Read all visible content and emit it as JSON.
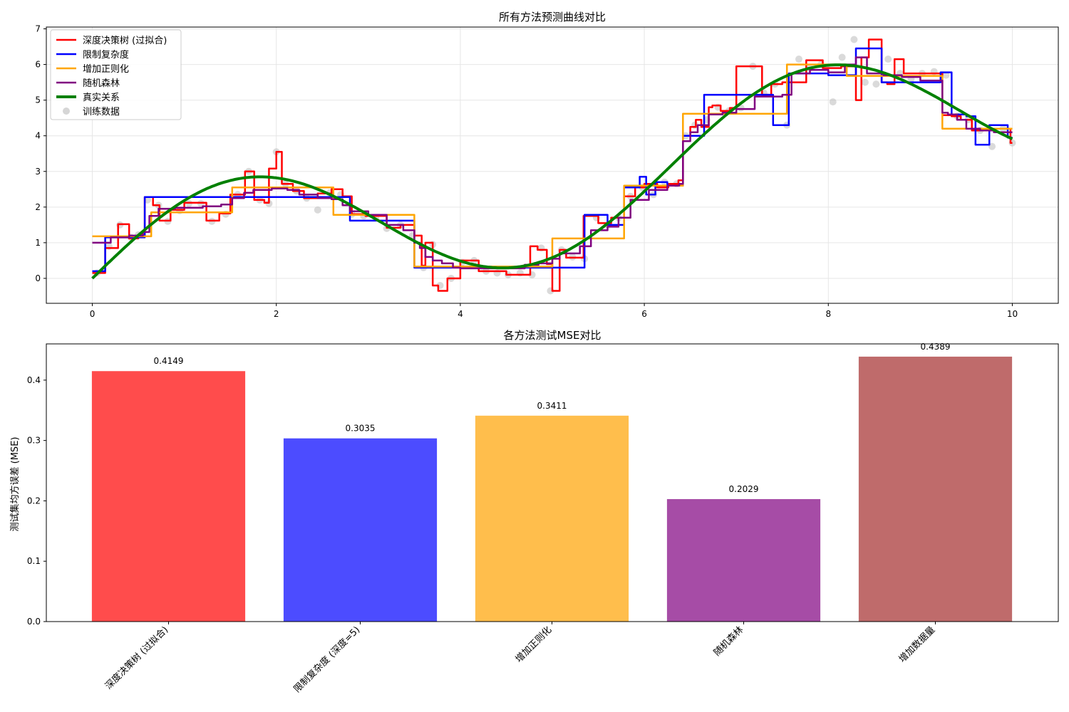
{
  "chart_data": [
    {
      "type": "line",
      "title": "所有方法预测曲线对比",
      "xlabel": "",
      "ylabel": "",
      "xlim": [
        -0.5,
        10.5
      ],
      "ylim": [
        -0.7,
        7.05
      ],
      "xticks": [
        0,
        2,
        4,
        6,
        8,
        10
      ],
      "yticks": [
        0,
        1,
        2,
        3,
        4,
        5,
        6,
        7
      ],
      "grid": true,
      "legend_position": "top-left",
      "series": [
        {
          "name": "深度决策树 (过拟合)",
          "color": "#ff0000",
          "width": 2.5,
          "style": "step",
          "x": [
            0,
            0.14,
            0.28,
            0.4,
            0.5,
            0.57,
            0.66,
            0.73,
            0.85,
            1.0,
            1.24,
            1.38,
            1.5,
            1.66,
            1.76,
            1.87,
            1.92,
            2.0,
            2.06,
            2.18,
            2.3,
            2.45,
            2.6,
            2.72,
            2.82,
            2.97,
            3.2,
            3.35,
            3.5,
            3.58,
            3.62,
            3.7,
            3.76,
            3.86,
            4.0,
            4.2,
            4.36,
            4.5,
            4.6,
            4.76,
            4.84,
            4.94,
            5.0,
            5.08,
            5.15,
            5.34,
            5.5,
            5.64,
            5.78,
            5.9,
            6.0,
            6.14,
            6.26,
            6.37,
            6.42,
            6.5,
            6.56,
            6.62,
            6.7,
            6.74,
            6.83,
            6.93,
            7.0,
            7.28,
            7.38,
            7.5,
            7.76,
            7.94,
            8.14,
            8.3,
            8.36,
            8.44,
            8.58,
            8.64,
            8.72,
            8.82,
            8.98,
            9.24,
            9.34,
            9.44,
            9.56,
            9.74,
            9.98,
            10.0
          ],
          "y": [
            0.15,
            0.85,
            1.52,
            1.12,
            1.22,
            2.28,
            2.05,
            1.62,
            1.92,
            2.12,
            1.62,
            1.82,
            2.35,
            3.0,
            2.2,
            2.12,
            3.08,
            3.55,
            2.65,
            2.45,
            2.25,
            2.38,
            2.5,
            2.3,
            1.8,
            1.75,
            1.42,
            1.5,
            1.2,
            0.35,
            1.0,
            -0.2,
            -0.35,
            0.0,
            0.5,
            0.2,
            0.2,
            0.1,
            0.1,
            0.9,
            0.8,
            0.4,
            -0.35,
            0.8,
            0.58,
            1.75,
            1.55,
            1.7,
            2.3,
            2.55,
            2.65,
            2.55,
            2.65,
            2.75,
            4.0,
            4.25,
            4.45,
            4.25,
            4.8,
            4.85,
            4.7,
            4.78,
            5.95,
            5.15,
            5.45,
            5.5,
            6.12,
            5.9,
            5.95,
            5.0,
            6.2,
            6.7,
            5.5,
            5.45,
            6.15,
            5.75,
            5.75,
            4.58,
            4.55,
            4.45,
            4.15,
            4.2,
            3.8,
            3.8
          ]
        },
        {
          "name": "限制复杂度",
          "color": "#0000ff",
          "width": 2.5,
          "style": "step",
          "x": [
            0,
            0.14,
            0.57,
            2.8,
            3.5,
            3.7,
            5.35,
            5.6,
            5.78,
            5.95,
            6.02,
            6.12,
            6.25,
            6.42,
            6.65,
            7.0,
            7.4,
            7.57,
            8.0,
            8.3,
            8.58,
            9.22,
            9.34,
            9.5,
            9.6,
            9.75,
            9.95,
            10.0
          ],
          "y": [
            0.2,
            1.15,
            2.28,
            1.62,
            0.3,
            0.3,
            1.78,
            1.5,
            2.55,
            2.85,
            2.35,
            2.7,
            2.6,
            4.0,
            5.15,
            5.15,
            4.3,
            5.75,
            5.7,
            6.45,
            5.5,
            5.78,
            4.6,
            4.55,
            3.75,
            4.3,
            3.95,
            3.95
          ]
        },
        {
          "name": "增加正则化",
          "color": "#ffa500",
          "width": 2.5,
          "style": "step",
          "x": [
            0,
            0.64,
            1.52,
            2.62,
            3.5,
            5.0,
            5.78,
            6.42,
            7.55,
            8.2,
            9.24,
            10.0
          ],
          "y": [
            1.18,
            1.85,
            2.55,
            1.78,
            0.33,
            1.12,
            2.6,
            4.62,
            6.0,
            5.68,
            4.2,
            4.2
          ]
        },
        {
          "name": "随机森林",
          "color": "#800080",
          "width": 2.5,
          "style": "step",
          "x": [
            0,
            0.2,
            0.4,
            0.55,
            0.62,
            0.72,
            0.9,
            1.2,
            1.4,
            1.52,
            1.65,
            1.75,
            1.95,
            2.12,
            2.25,
            2.45,
            2.6,
            2.72,
            2.8,
            3.0,
            3.2,
            3.38,
            3.5,
            3.56,
            3.62,
            3.7,
            3.8,
            3.92,
            4.0,
            4.5,
            4.7,
            4.85,
            5.0,
            5.08,
            5.3,
            5.42,
            5.6,
            5.72,
            5.85,
            6.05,
            6.25,
            6.38,
            6.42,
            6.5,
            6.58,
            6.7,
            6.85,
            7.0,
            7.2,
            7.5,
            7.6,
            7.8,
            8.0,
            8.18,
            8.3,
            8.42,
            8.6,
            8.8,
            9.0,
            9.24,
            9.3,
            9.4,
            9.5,
            9.65,
            9.8,
            10.0
          ],
          "y": [
            1.0,
            1.15,
            1.2,
            1.3,
            1.75,
            1.95,
            1.98,
            2.02,
            2.07,
            2.25,
            2.4,
            2.48,
            2.52,
            2.48,
            2.35,
            2.25,
            2.22,
            2.05,
            1.88,
            1.78,
            1.5,
            1.35,
            1.0,
            0.85,
            0.6,
            0.5,
            0.42,
            0.3,
            0.28,
            0.28,
            0.38,
            0.42,
            0.55,
            0.7,
            0.9,
            1.35,
            1.45,
            1.7,
            2.2,
            2.48,
            2.6,
            2.65,
            3.85,
            4.1,
            4.3,
            4.6,
            4.65,
            4.75,
            5.1,
            5.15,
            5.75,
            5.85,
            5.78,
            6.0,
            6.2,
            5.75,
            5.7,
            5.65,
            5.55,
            4.65,
            4.6,
            4.45,
            4.2,
            4.15,
            4.1,
            4.1
          ]
        },
        {
          "name": "真实关系",
          "color": "#008000",
          "width": 4,
          "style": "smooth",
          "fn": "sin_plus_half_x",
          "x_range": [
            0,
            10
          ]
        }
      ],
      "scatter": {
        "name": "训练数据",
        "color": "#bbbbbb",
        "x": [
          0.05,
          0.18,
          0.3,
          0.42,
          0.5,
          0.6,
          0.72,
          0.82,
          0.95,
          1.05,
          1.18,
          1.3,
          1.45,
          1.58,
          1.7,
          1.82,
          1.92,
          2.0,
          2.1,
          2.22,
          2.33,
          2.45,
          2.58,
          2.7,
          2.82,
          2.95,
          3.08,
          3.2,
          3.35,
          3.48,
          3.6,
          3.7,
          3.78,
          3.9,
          4.02,
          4.15,
          4.28,
          4.4,
          4.52,
          4.65,
          4.78,
          4.88,
          4.98,
          5.1,
          5.22,
          5.35,
          5.48,
          5.6,
          5.72,
          5.85,
          5.98,
          6.1,
          6.22,
          6.35,
          6.45,
          6.55,
          6.68,
          6.8,
          6.92,
          7.05,
          7.18,
          7.3,
          7.42,
          7.55,
          7.68,
          7.8,
          7.92,
          8.05,
          8.15,
          8.28,
          8.4,
          8.52,
          8.65,
          8.78,
          8.9,
          9.02,
          9.15,
          9.28,
          9.4,
          9.52,
          9.65,
          9.78,
          9.9,
          10.0
        ],
        "y": [
          0.15,
          0.9,
          1.5,
          1.15,
          1.22,
          2.2,
          2.05,
          1.6,
          1.9,
          2.1,
          2.1,
          1.6,
          1.8,
          2.35,
          3.0,
          2.2,
          2.1,
          3.55,
          2.65,
          2.45,
          2.25,
          1.92,
          2.4,
          2.35,
          1.8,
          1.75,
          1.7,
          1.4,
          1.5,
          1.2,
          0.3,
          0.95,
          -0.2,
          0.0,
          0.45,
          0.5,
          0.2,
          0.15,
          0.1,
          0.15,
          0.1,
          0.85,
          -0.35,
          0.8,
          0.6,
          0.55,
          1.7,
          1.5,
          1.7,
          2.3,
          2.55,
          2.35,
          2.7,
          2.65,
          4.0,
          4.3,
          4.45,
          4.8,
          4.7,
          4.78,
          5.95,
          5.2,
          5.45,
          4.3,
          6.15,
          5.9,
          6.0,
          4.95,
          6.2,
          6.7,
          5.5,
          5.45,
          6.15,
          5.75,
          5.6,
          5.75,
          5.8,
          5.7,
          4.55,
          4.45,
          4.15,
          3.7,
          4.2,
          3.8
        ]
      }
    },
    {
      "type": "bar",
      "title": "各方法测试MSE对比",
      "xlabel": "",
      "ylabel": "测试集均方误差 (MSE)",
      "categories": [
        "深度决策树 (过拟合)",
        "限制复杂度 (深度=5)",
        "增加正则化",
        "随机森林",
        "增加数据量"
      ],
      "values": [
        0.4149,
        0.3035,
        0.3411,
        0.2029,
        0.4389
      ],
      "value_labels": [
        "0.4149",
        "0.3035",
        "0.3411",
        "0.2029",
        "0.4389"
      ],
      "colors": [
        "#ff4c4c",
        "#4c4cff",
        "#ffbe4c",
        "#a64ca6",
        "#bf6b6b"
      ],
      "ylim": [
        0,
        0.46
      ],
      "yticks": [
        "0.0",
        "0.1",
        "0.2",
        "0.3",
        "0.4"
      ],
      "grid": false
    }
  ]
}
